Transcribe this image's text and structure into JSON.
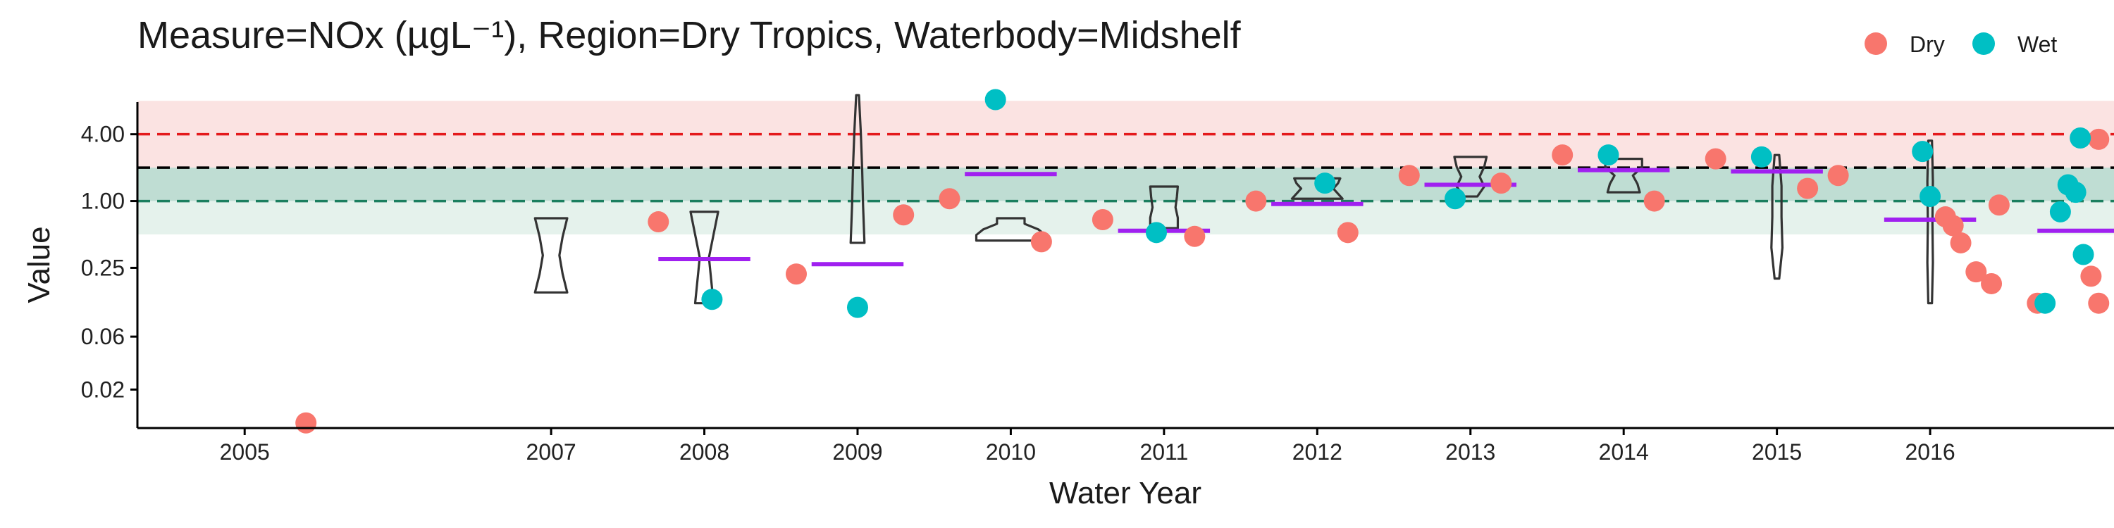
{
  "chart_data": {
    "type": "scatter",
    "title": "Measure=NOx (µgL⁻¹), Region=Dry Tropics, Waterbody=Midshelf",
    "xlabel": "Water Year",
    "ylabel": "Value",
    "y_scale": "log2",
    "ylim": [
      0.009,
      13
    ],
    "xlim": [
      2004.3,
      2017.2
    ],
    "x_ticks": [
      2005,
      2007,
      2008,
      2009,
      2010,
      2011,
      2012,
      2013,
      2014,
      2015,
      2016
    ],
    "x_tick_labels": [
      "2005",
      "2007",
      "2008",
      "2009",
      "2010",
      "2011",
      "2012",
      "2013",
      "2014",
      "2015",
      "2016"
    ],
    "y_ticks": [
      0.02,
      0.06,
      0.25,
      1.0,
      4.0
    ],
    "y_tick_labels": [
      "0.02",
      "0.06",
      "0.25",
      "1.00",
      "4.00"
    ],
    "grid": false,
    "legend_position": "top-right",
    "colors": {
      "Dry": "#F8766D",
      "Wet": "#00BFC4",
      "median": "#A020F0",
      "red_band": "#FBE3E2",
      "green_band": "#BFDDD3",
      "green_band_light": "#E5F2EC",
      "red_line": "#E41A1C",
      "black_line": "#000000",
      "green_line": "#1B7F5F"
    },
    "bands": [
      {
        "from": 2.0,
        "to": 8.0,
        "color": "red_band"
      },
      {
        "from": 1.0,
        "to": 2.0,
        "color": "green_band"
      },
      {
        "from": 0.5,
        "to": 1.0,
        "color": "green_band_light"
      }
    ],
    "reference_lines": [
      {
        "y": 4.0,
        "color": "red_line",
        "style": "dashed"
      },
      {
        "y": 2.0,
        "color": "black_line",
        "style": "dashed"
      },
      {
        "y": 1.0,
        "color": "green_line",
        "style": "dashed"
      }
    ],
    "series": [
      {
        "name": "Dry",
        "points": [
          {
            "x": 2005.4,
            "y": 0.01
          },
          {
            "x": 2007.7,
            "y": 0.65
          },
          {
            "x": 2008.6,
            "y": 0.22
          },
          {
            "x": 2009.3,
            "y": 0.75
          },
          {
            "x": 2009.6,
            "y": 1.05
          },
          {
            "x": 2010.2,
            "y": 0.43
          },
          {
            "x": 2010.6,
            "y": 0.68
          },
          {
            "x": 2011.2,
            "y": 0.48
          },
          {
            "x": 2011.6,
            "y": 1.0
          },
          {
            "x": 2012.2,
            "y": 0.52
          },
          {
            "x": 2012.6,
            "y": 1.7
          },
          {
            "x": 2013.2,
            "y": 1.45
          },
          {
            "x": 2013.6,
            "y": 2.6
          },
          {
            "x": 2014.2,
            "y": 1.0
          },
          {
            "x": 2014.6,
            "y": 2.4
          },
          {
            "x": 2015.2,
            "y": 1.3
          },
          {
            "x": 2015.4,
            "y": 1.7
          },
          {
            "x": 2016.1,
            "y": 0.72
          },
          {
            "x": 2016.15,
            "y": 0.6
          },
          {
            "x": 2016.2,
            "y": 0.42
          },
          {
            "x": 2016.3,
            "y": 0.23
          },
          {
            "x": 2016.4,
            "y": 0.18
          },
          {
            "x": 2016.45,
            "y": 0.92
          },
          {
            "x": 2016.7,
            "y": 0.12
          },
          {
            "x": 2017.1,
            "y": 3.6
          },
          {
            "x": 2017.05,
            "y": 0.21
          },
          {
            "x": 2017.1,
            "y": 0.12
          }
        ]
      },
      {
        "name": "Wet",
        "points": [
          {
            "x": 2008.05,
            "y": 0.13
          },
          {
            "x": 2009.0,
            "y": 0.11
          },
          {
            "x": 2009.9,
            "y": 8.2
          },
          {
            "x": 2010.95,
            "y": 0.52
          },
          {
            "x": 2012.05,
            "y": 1.45
          },
          {
            "x": 2012.9,
            "y": 1.05
          },
          {
            "x": 2013.9,
            "y": 2.6
          },
          {
            "x": 2014.9,
            "y": 2.5
          },
          {
            "x": 2015.95,
            "y": 2.8
          },
          {
            "x": 2016.0,
            "y": 1.1
          },
          {
            "x": 2016.75,
            "y": 0.12
          },
          {
            "x": 2016.85,
            "y": 0.8
          },
          {
            "x": 2016.9,
            "y": 1.4
          },
          {
            "x": 2016.95,
            "y": 1.2
          },
          {
            "x": 2016.98,
            "y": 3.7
          },
          {
            "x": 2017.0,
            "y": 0.33
          }
        ]
      }
    ],
    "medians": [
      {
        "x": 2008.0,
        "y": 0.3
      },
      {
        "x": 2009.0,
        "y": 0.27
      },
      {
        "x": 2010.0,
        "y": 1.75
      },
      {
        "x": 2011.0,
        "y": 0.54
      },
      {
        "x": 2012.0,
        "y": 0.94
      },
      {
        "x": 2013.0,
        "y": 1.4
      },
      {
        "x": 2014.0,
        "y": 1.9
      },
      {
        "x": 2015.0,
        "y": 1.85
      },
      {
        "x": 2016.0,
        "y": 0.68
      },
      {
        "x": 2017.0,
        "y": 0.54
      }
    ],
    "violins": [
      {
        "x": 2007.0,
        "min": 0.15,
        "max": 0.7,
        "profile": [
          0.35,
          0.25,
          0.18,
          0.25,
          0.35
        ]
      },
      {
        "x": 2008.0,
        "min": 0.12,
        "max": 0.8,
        "profile": [
          0.2,
          0.15,
          0.1,
          0.2,
          0.3
        ]
      },
      {
        "x": 2009.0,
        "min": 0.42,
        "max": 9.0,
        "profile": [
          0.15,
          0.12,
          0.1,
          0.07,
          0.03
        ]
      },
      {
        "x": 2010.0,
        "min": 0.44,
        "max": 0.7,
        "profile": [
          0.75,
          0.75,
          0.6,
          0.3,
          0.3
        ]
      },
      {
        "x": 2011.0,
        "min": 0.57,
        "max": 1.35,
        "profile": [
          0.3,
          0.3,
          0.25,
          0.28,
          0.3
        ]
      },
      {
        "x": 2012.0,
        "min": 1.05,
        "max": 1.6,
        "profile": [
          0.55,
          0.45,
          0.35,
          0.45,
          0.5
        ]
      },
      {
        "x": 2013.0,
        "min": 1.1,
        "max": 2.5,
        "profile": [
          0.15,
          0.3,
          0.2,
          0.3,
          0.35
        ]
      },
      {
        "x": 2014.0,
        "min": 1.2,
        "max": 2.4,
        "profile": [
          0.35,
          0.3,
          0.2,
          0.4,
          0.4
        ]
      },
      {
        "x": 2015.0,
        "min": 0.2,
        "max": 2.6,
        "profile": [
          0.05,
          0.12,
          0.1,
          0.1,
          0.05
        ]
      },
      {
        "x": 2016.0,
        "min": 0.12,
        "max": 3.5,
        "profile": [
          0.04,
          0.06,
          0.05,
          0.06,
          0.04
        ]
      }
    ]
  },
  "legend": {
    "items": [
      {
        "label": "Dry",
        "color": "#F8766D"
      },
      {
        "label": "Wet",
        "color": "#00BFC4"
      }
    ]
  }
}
